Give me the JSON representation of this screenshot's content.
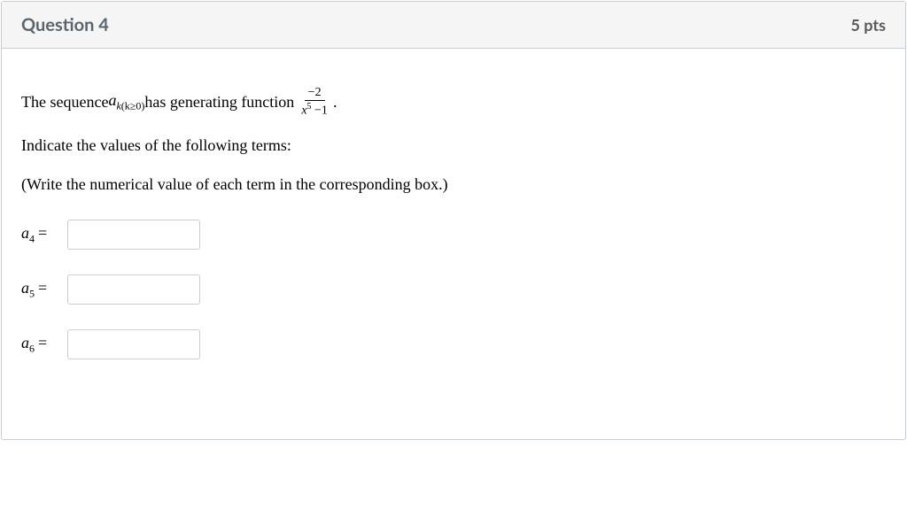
{
  "header": {
    "title": "Question 4",
    "points": "5 pts"
  },
  "prompt": {
    "lead": "The sequence ",
    "seq_var": "a",
    "seq_sub_var": "k",
    "seq_sub_cond": "(k≥0)",
    "mid": " has generating function ",
    "fraction_num": "−2",
    "fraction_den_var": "x",
    "fraction_den_exp": "5",
    "fraction_den_tail": " −1",
    "after_fraction": ".",
    "line2": "Indicate the values of the following terms:",
    "line3": "(Write the numerical value of each term in the corresponding box.)"
  },
  "answers": [
    {
      "var": "a",
      "index": "4",
      "eq": "="
    },
    {
      "var": "a",
      "index": "5",
      "eq": "="
    },
    {
      "var": "a",
      "index": "6",
      "eq": "="
    }
  ]
}
